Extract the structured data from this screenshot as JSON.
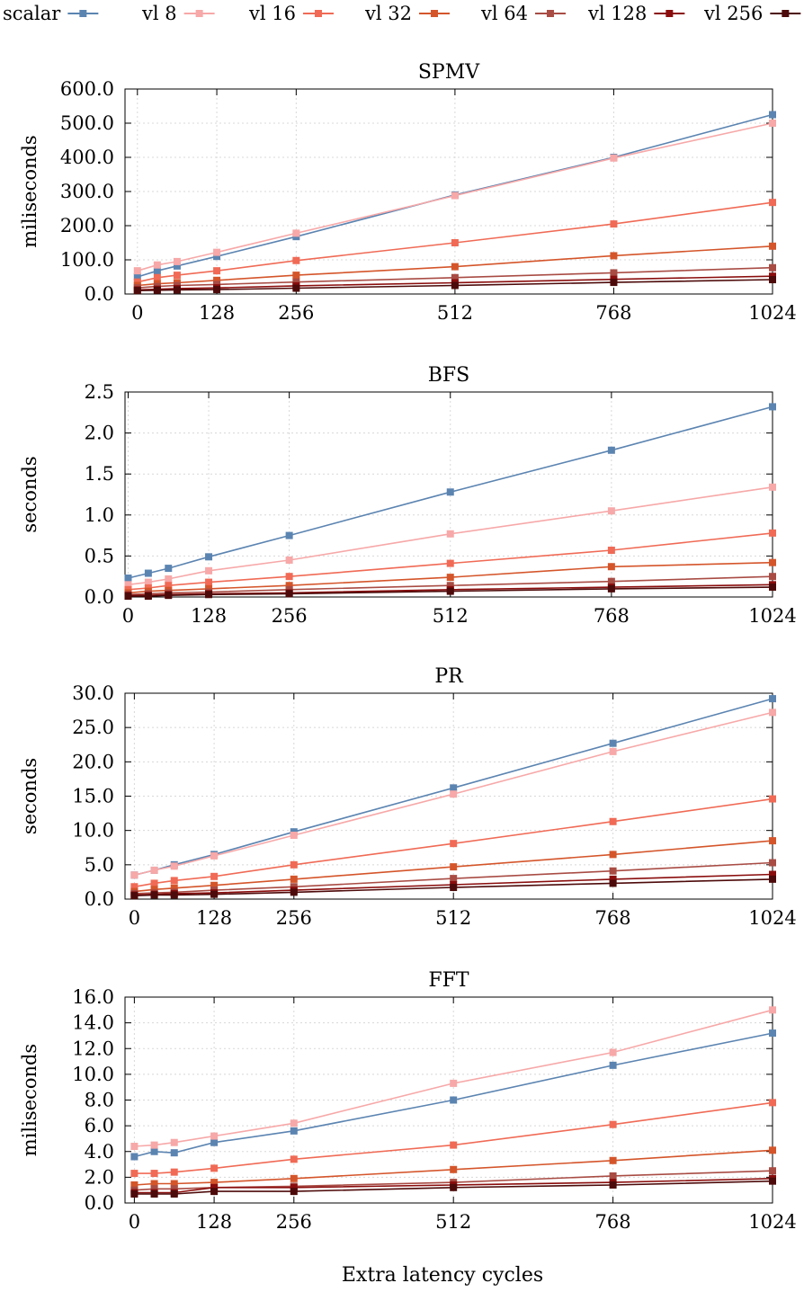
{
  "legend": {
    "entries": [
      {
        "name": "scalar",
        "color": "#5b84b1"
      },
      {
        "name": "vl 8",
        "color": "#f7a8a8"
      },
      {
        "name": "vl 16",
        "color": "#f06a55"
      },
      {
        "name": "vl 32",
        "color": "#d4552a"
      },
      {
        "name": "vl 64",
        "color": "#a84c44"
      },
      {
        "name": "vl 128",
        "color": "#8a0d0d"
      },
      {
        "name": "vl 256",
        "color": "#4d0a0a"
      }
    ]
  },
  "xlabel": "Extra latency cycles",
  "chart_data": [
    {
      "type": "line",
      "title": "SPMV",
      "ylabel": "miliseconds",
      "x": [
        0,
        32,
        64,
        128,
        256,
        512,
        768,
        1024
      ],
      "xticks": [
        0,
        128,
        256,
        512,
        768,
        1024
      ],
      "xticklabels": [
        "0",
        "128",
        "256",
        "512",
        "768",
        "1024"
      ],
      "xlim": [
        -20,
        1024
      ],
      "yticks": [
        0,
        100,
        200,
        300,
        400,
        500,
        600
      ],
      "yticklabels": [
        "0.0",
        "100.0",
        "200.0",
        "300.0",
        "400.0",
        "500.0",
        "600.0"
      ],
      "ylim": [
        0,
        600
      ],
      "series": [
        {
          "name": "scalar",
          "values": [
            50,
            68,
            82,
            110,
            168,
            290,
            400,
            525
          ]
        },
        {
          "name": "vl 8",
          "values": [
            68,
            85,
            95,
            122,
            178,
            288,
            398,
            500
          ]
        },
        {
          "name": "vl 16",
          "values": [
            35,
            48,
            55,
            68,
            98,
            150,
            205,
            268
          ]
        },
        {
          "name": "vl 32",
          "values": [
            25,
            30,
            33,
            40,
            55,
            80,
            112,
            140
          ]
        },
        {
          "name": "vl 64",
          "values": [
            18,
            22,
            25,
            28,
            35,
            48,
            62,
            77
          ]
        },
        {
          "name": "vl 128",
          "values": [
            12,
            14,
            16,
            18,
            24,
            33,
            43,
            52
          ]
        },
        {
          "name": "vl 256",
          "values": [
            10,
            11,
            12,
            13,
            17,
            25,
            34,
            42
          ]
        }
      ]
    },
    {
      "type": "line",
      "title": "BFS",
      "ylabel": "seconds",
      "x": [
        0,
        32,
        64,
        128,
        256,
        512,
        768,
        1024
      ],
      "xticks": [
        0,
        128,
        256,
        512,
        768,
        1024
      ],
      "xticklabels": [
        "0",
        "128",
        "256",
        "512",
        "768",
        "1024"
      ],
      "xlim": [
        -5,
        1024
      ],
      "yticks": [
        0,
        0.5,
        1.0,
        1.5,
        2.0,
        2.5
      ],
      "yticklabels": [
        "0.0",
        "0.5",
        "1.0",
        "1.5",
        "2.0",
        "2.5"
      ],
      "ylim": [
        0,
        2.5
      ],
      "series": [
        {
          "name": "scalar",
          "values": [
            0.23,
            0.29,
            0.35,
            0.49,
            0.75,
            1.28,
            1.79,
            2.32
          ]
        },
        {
          "name": "vl 8",
          "values": [
            0.15,
            0.18,
            0.22,
            0.32,
            0.45,
            0.77,
            1.05,
            1.34
          ]
        },
        {
          "name": "vl 16",
          "values": [
            0.09,
            0.11,
            0.14,
            0.18,
            0.25,
            0.41,
            0.57,
            0.78
          ]
        },
        {
          "name": "vl 32",
          "values": [
            0.05,
            0.07,
            0.08,
            0.1,
            0.14,
            0.24,
            0.37,
            0.42
          ]
        },
        {
          "name": "vl 64",
          "values": [
            0.03,
            0.04,
            0.05,
            0.06,
            0.09,
            0.14,
            0.19,
            0.25
          ]
        },
        {
          "name": "vl 128",
          "values": [
            0.02,
            0.02,
            0.03,
            0.04,
            0.05,
            0.09,
            0.12,
            0.15
          ]
        },
        {
          "name": "vl 256",
          "values": [
            0.01,
            0.01,
            0.02,
            0.03,
            0.04,
            0.07,
            0.1,
            0.12
          ]
        }
      ]
    },
    {
      "type": "line",
      "title": "PR",
      "ylabel": "seconds",
      "x": [
        0,
        32,
        64,
        128,
        256,
        512,
        768,
        1024
      ],
      "xticks": [
        0,
        128,
        256,
        512,
        768,
        1024
      ],
      "xticklabels": [
        "0",
        "128",
        "256",
        "512",
        "768",
        "1024"
      ],
      "xlim": [
        -15,
        1024
      ],
      "yticks": [
        0,
        5,
        10,
        15,
        20,
        25,
        30
      ],
      "yticklabels": [
        "0.0",
        "5.0",
        "10.0",
        "15.0",
        "20.0",
        "25.0",
        "30.0"
      ],
      "ylim": [
        0,
        30
      ],
      "series": [
        {
          "name": "scalar",
          "values": [
            3.5,
            4.2,
            5.0,
            6.5,
            9.8,
            16.2,
            22.7,
            29.2
          ]
        },
        {
          "name": "vl 8",
          "values": [
            3.5,
            4.2,
            4.8,
            6.3,
            9.3,
            15.3,
            21.5,
            27.2
          ]
        },
        {
          "name": "vl 16",
          "values": [
            1.8,
            2.3,
            2.7,
            3.3,
            5.0,
            8.1,
            11.3,
            14.6
          ]
        },
        {
          "name": "vl 32",
          "values": [
            1.1,
            1.4,
            1.6,
            2.0,
            2.9,
            4.7,
            6.5,
            8.5
          ]
        },
        {
          "name": "vl 64",
          "values": [
            0.8,
            0.9,
            1.0,
            1.3,
            1.8,
            3.0,
            4.1,
            5.3
          ]
        },
        {
          "name": "vl 128",
          "values": [
            0.6,
            0.7,
            0.8,
            0.9,
            1.3,
            2.1,
            2.9,
            3.6
          ]
        },
        {
          "name": "vl 256",
          "values": [
            0.5,
            0.6,
            0.6,
            0.7,
            1.0,
            1.7,
            2.3,
            2.9
          ]
        }
      ]
    },
    {
      "type": "line",
      "title": "FFT",
      "ylabel": "miliseconds",
      "x": [
        0,
        32,
        64,
        128,
        256,
        512,
        768,
        1024
      ],
      "xticks": [
        0,
        128,
        256,
        512,
        768,
        1024
      ],
      "xticklabels": [
        "0",
        "128",
        "256",
        "512",
        "768",
        "1024"
      ],
      "xlim": [
        -15,
        1024
      ],
      "yticks": [
        0,
        2,
        4,
        6,
        8,
        10,
        12,
        14,
        16
      ],
      "yticklabels": [
        "0.0",
        "2.0",
        "4.0",
        "6.0",
        "8.0",
        "10.0",
        "12.0",
        "14.0",
        "16.0"
      ],
      "ylim": [
        0,
        16
      ],
      "series": [
        {
          "name": "scalar",
          "values": [
            3.6,
            4.0,
            3.9,
            4.7,
            5.6,
            8.0,
            10.7,
            13.2
          ]
        },
        {
          "name": "vl 8",
          "values": [
            4.4,
            4.5,
            4.7,
            5.2,
            6.2,
            9.3,
            11.7,
            15.0
          ]
        },
        {
          "name": "vl 16",
          "values": [
            2.3,
            2.3,
            2.4,
            2.7,
            3.4,
            4.5,
            6.1,
            7.8
          ]
        },
        {
          "name": "vl 32",
          "values": [
            1.4,
            1.5,
            1.5,
            1.6,
            1.9,
            2.6,
            3.3,
            4.1
          ]
        },
        {
          "name": "vl 64",
          "values": [
            1.0,
            1.1,
            1.1,
            1.2,
            1.3,
            1.6,
            2.1,
            2.5
          ]
        },
        {
          "name": "vl 128",
          "values": [
            0.8,
            0.8,
            0.8,
            1.2,
            1.2,
            1.4,
            1.6,
            1.9
          ]
        },
        {
          "name": "vl 256",
          "values": [
            0.7,
            0.7,
            0.7,
            0.9,
            0.9,
            1.2,
            1.4,
            1.7
          ]
        }
      ]
    }
  ]
}
